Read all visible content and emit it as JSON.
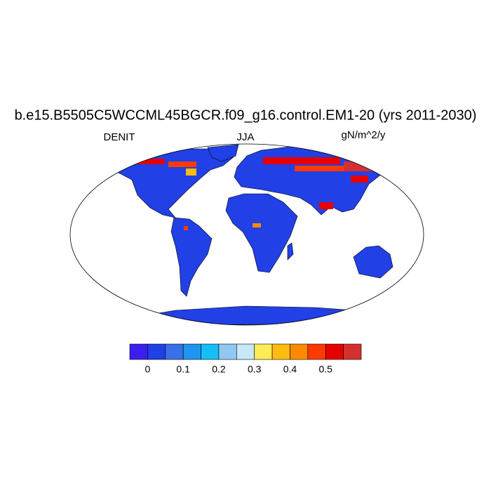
{
  "title": "b.e15.B5505C5WCCML45BGCR.f09_g16.control.EM1-20 (yrs 2011-2030)",
  "left_label": "DENIT",
  "center_label": "JJA",
  "right_label": "gN/m^2/y",
  "colorbar": {
    "colors": [
      "#3c1ef0",
      "#2140e6",
      "#3870e8",
      "#1f95f0",
      "#15bff5",
      "#90c8f0",
      "#c8e8f8",
      "#ffeb55",
      "#ffbb10",
      "#ff8a00",
      "#ff3a00",
      "#e60000",
      "#d43030"
    ],
    "labels": [
      0,
      0.1,
      0.2,
      0.3,
      0.4,
      0.5
    ]
  }
}
